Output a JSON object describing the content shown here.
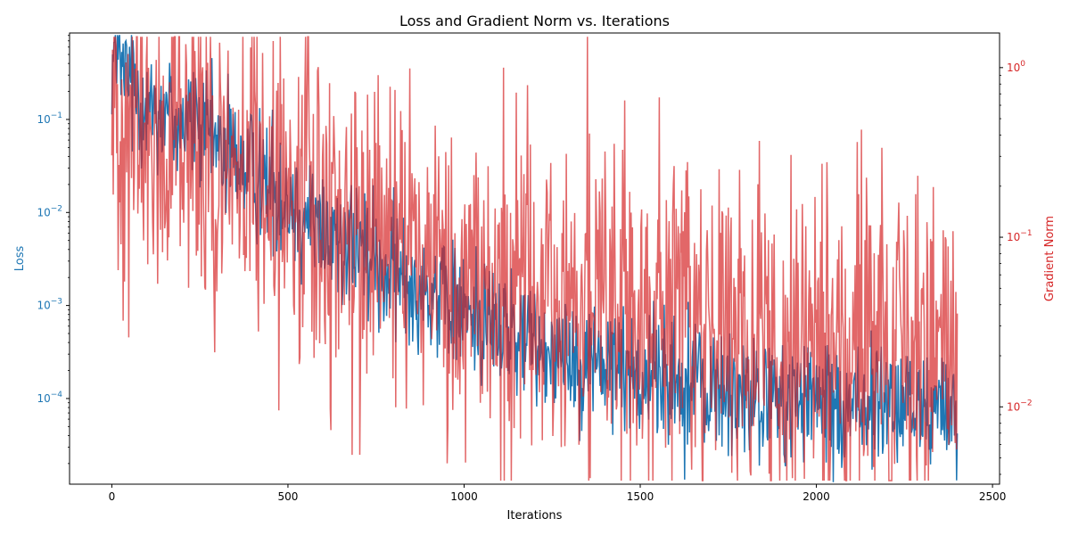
{
  "chart_data": {
    "type": "line",
    "title": "Loss and Gradient Norm vs. Iterations",
    "xlabel": "Iterations",
    "ylabel_left": "Loss",
    "ylabel_right": "Gradient Norm",
    "xlim": [
      -120,
      2520
    ],
    "ylim_left": [
      1.2e-05,
      0.85
    ],
    "ylim_right": [
      0.0035,
      1.6
    ],
    "yscale_left": "log",
    "yscale_right": "log",
    "grid": false,
    "x_ticks": [
      0,
      500,
      1000,
      1500,
      2000,
      2500
    ],
    "x_tick_labels": [
      "0",
      "500",
      "1000",
      "1500",
      "2000",
      "2500"
    ],
    "y_left_ticks": [
      0.1,
      0.01,
      0.001,
      0.0001
    ],
    "y_left_tick_labels": [
      {
        "base": "10",
        "exp": "−1"
      },
      {
        "base": "10",
        "exp": "−2"
      },
      {
        "base": "10",
        "exp": "−3"
      },
      {
        "base": "10",
        "exp": "−4"
      }
    ],
    "y_right_ticks": [
      1,
      0.1,
      0.01
    ],
    "y_right_tick_labels": [
      {
        "base": "10",
        "exp": "0"
      },
      {
        "base": "10",
        "exp": "−1"
      },
      {
        "base": "10",
        "exp": "−2"
      }
    ],
    "colors": {
      "loss": "#1f77b4",
      "grad": "#d62728",
      "axis": "#000000"
    },
    "series": [
      {
        "name": "Loss",
        "axis": "left",
        "color": "#1f77b4",
        "x": [
          0,
          25,
          50,
          100,
          150,
          200,
          250,
          300,
          350,
          400,
          450,
          500,
          550,
          600,
          650,
          700,
          750,
          800,
          850,
          900,
          950,
          1000,
          1050,
          1100,
          1150,
          1200,
          1250,
          1300,
          1350,
          1400,
          1450,
          1500,
          1550,
          1600,
          1650,
          1700,
          1750,
          1800,
          1850,
          1900,
          1950,
          2000,
          2050,
          2100,
          2150,
          2200,
          2250,
          2300,
          2350,
          2400
        ],
        "y": [
          0.5,
          0.35,
          0.25,
          0.16,
          0.12,
          0.1,
          0.08,
          0.055,
          0.04,
          0.028,
          0.02,
          0.014,
          0.0095,
          0.0068,
          0.005,
          0.0038,
          0.0028,
          0.0022,
          0.0017,
          0.0014,
          0.0011,
          0.0009,
          0.00072,
          0.00058,
          0.00048,
          0.0004,
          0.00034,
          0.0003,
          0.00027,
          0.00024,
          0.00021,
          0.00019,
          0.00017,
          0.00015,
          0.00013,
          0.00012,
          0.00011,
          0.0001,
          9.5e-05,
          9.2e-05,
          9e-05,
          8.8e-05,
          8.5e-05,
          8.3e-05,
          8.2e-05,
          8e-05,
          8e-05,
          7.8e-05,
          7.8e-05,
          7.7e-05
        ],
        "noise": 0.35
      },
      {
        "name": "Gradient Norm",
        "axis": "right",
        "color": "#d62728",
        "x": [
          0,
          25,
          50,
          100,
          150,
          200,
          250,
          300,
          350,
          400,
          450,
          500,
          550,
          600,
          650,
          700,
          750,
          800,
          850,
          900,
          950,
          1000,
          1050,
          1100,
          1150,
          1200,
          1250,
          1300,
          1350,
          1400,
          1450,
          1500,
          1550,
          1600,
          1650,
          1700,
          1750,
          1800,
          1850,
          1900,
          1950,
          2000,
          2050,
          2100,
          2150,
          2200,
          2250,
          2300,
          2350,
          2400
        ],
        "y": [
          0.7,
          0.55,
          0.42,
          0.35,
          0.3,
          0.28,
          0.27,
          0.26,
          0.24,
          0.22,
          0.2,
          0.18,
          0.16,
          0.14,
          0.12,
          0.11,
          0.1,
          0.095,
          0.09,
          0.085,
          0.075,
          0.068,
          0.06,
          0.055,
          0.05,
          0.046,
          0.042,
          0.04,
          0.038,
          0.036,
          0.034,
          0.032,
          0.03,
          0.029,
          0.028,
          0.027,
          0.026,
          0.025,
          0.024,
          0.023,
          0.023,
          0.022,
          0.022,
          0.021,
          0.021,
          0.021,
          0.02,
          0.02,
          0.02,
          0.02
        ],
        "noise": 0.5
      }
    ]
  }
}
